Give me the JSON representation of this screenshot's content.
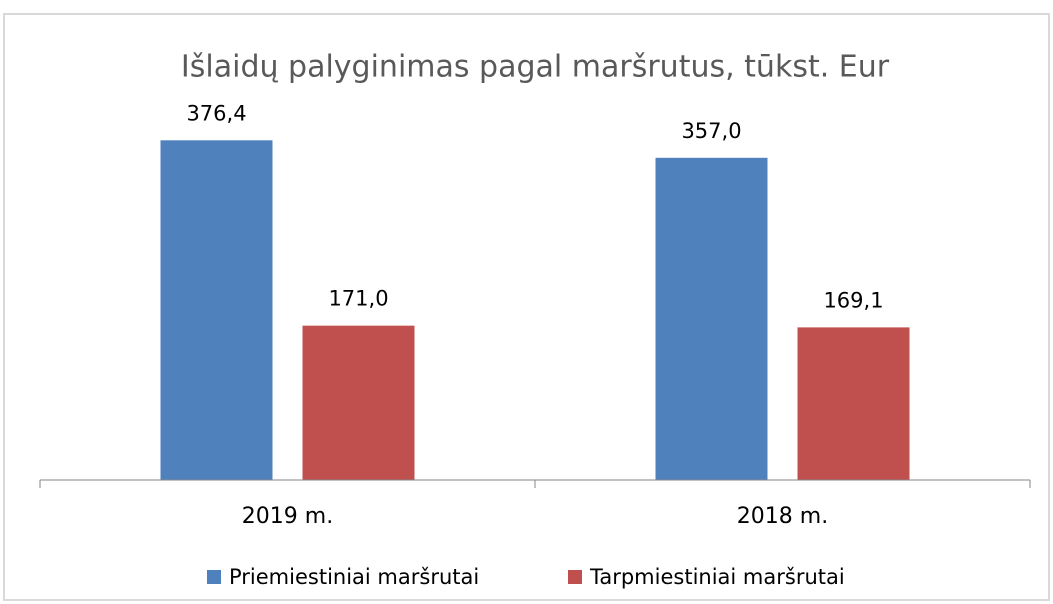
{
  "chart_data": {
    "type": "bar",
    "title": "Išlaidų palyginimas pagal maršrutus, tūkst. Eur",
    "categories": [
      "2019 m.",
      "2018 m."
    ],
    "series": [
      {
        "name": "Priemiestiniai maršrutai",
        "color": "#4f81bd",
        "values": [
          376.4,
          357.0
        ],
        "value_labels": [
          "376,4",
          "357,0"
        ]
      },
      {
        "name": "Tarpmiestiniai maršrutai",
        "color": "#c0504d",
        "values": [
          171.0,
          169.1
        ],
        "value_labels": [
          "171,0",
          "169,1"
        ]
      }
    ],
    "ylim": [
      0,
      400
    ],
    "legend": "bottom"
  }
}
